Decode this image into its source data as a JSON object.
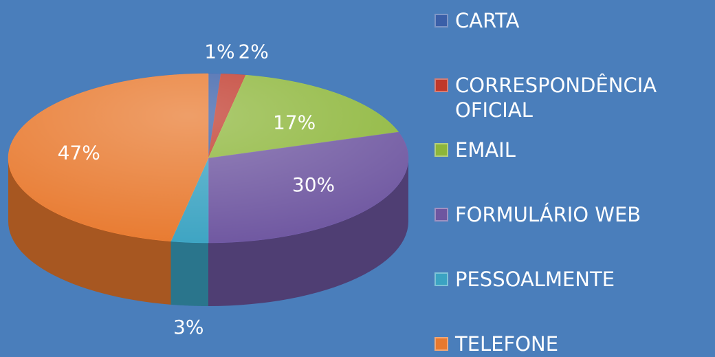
{
  "chart_data": {
    "type": "pie",
    "categories": [
      "CARTA",
      "CORRESPONDÊNCIA OFICIAL",
      "EMAIL",
      "FORMULÁRIO WEB",
      "PESSOALMENTE",
      "TELEFONE"
    ],
    "values": [
      1,
      2,
      17,
      30,
      3,
      47
    ],
    "value_labels": [
      "1%",
      "2%",
      "17%",
      "30%",
      "3%",
      "47%"
    ],
    "colors": [
      "#3a5fa8",
      "#c0392b",
      "#8db63a",
      "#6e56a0",
      "#3ba3c2",
      "#e8792e"
    ],
    "legend": "right"
  }
}
